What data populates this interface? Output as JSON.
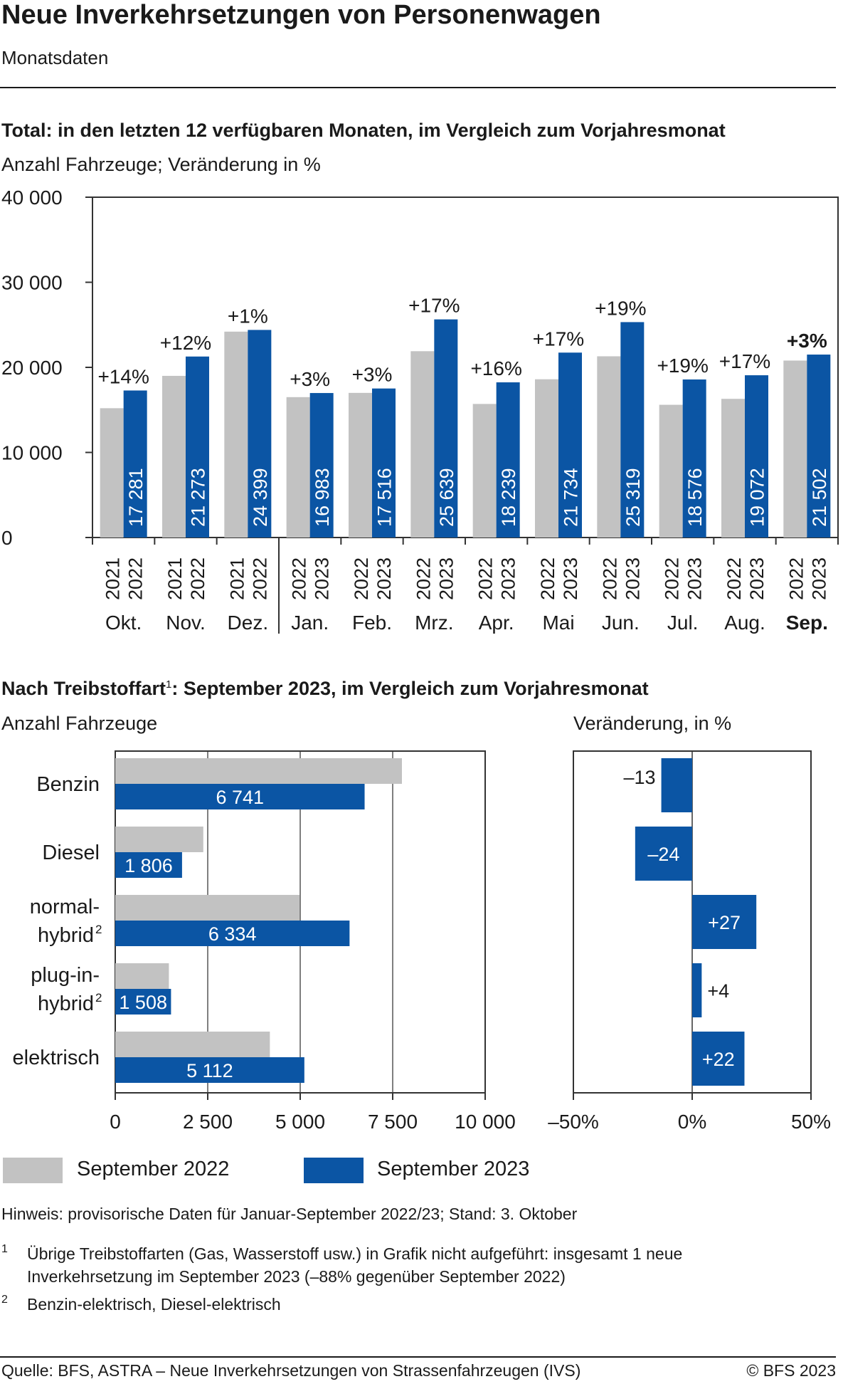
{
  "header": {
    "title": "Neue Inverkehrsetzungen von Personenwagen",
    "subtitle": "Monatsdaten"
  },
  "colors": {
    "prev_year": "#c2c2c2",
    "curr_year": "#0b55a4",
    "axis": "#333333",
    "text": "#1a1a1a"
  },
  "chart_data": [
    {
      "type": "bar",
      "title": "Total: in den letzten 12 verfügbaren Monaten, im Vergleich zum Vorjahresmonat",
      "subtitle": "Anzahl Fahrzeuge; Veränderung in %",
      "ylim": [
        0,
        40000
      ],
      "yticks": [
        0,
        10000,
        20000,
        30000,
        40000
      ],
      "ytick_labels": [
        "0",
        "10 000",
        "20 000",
        "30 000",
        "40 000"
      ],
      "grid": false,
      "categories": [
        "Okt.",
        "Nov.",
        "Dez.",
        "Jan.",
        "Feb.",
        "Mrz.",
        "Apr.",
        "Mai",
        "Jun.",
        "Jul.",
        "Aug.",
        "Sep."
      ],
      "highlight_category": "Sep.",
      "year_labels": [
        [
          "2021",
          "2022"
        ],
        [
          "2021",
          "2022"
        ],
        [
          "2021",
          "2022"
        ],
        [
          "2022",
          "2023"
        ],
        [
          "2022",
          "2023"
        ],
        [
          "2022",
          "2023"
        ],
        [
          "2022",
          "2023"
        ],
        [
          "2022",
          "2023"
        ],
        [
          "2022",
          "2023"
        ],
        [
          "2022",
          "2023"
        ],
        [
          "2022",
          "2023"
        ],
        [
          "2022",
          "2023"
        ]
      ],
      "series": [
        {
          "name": "Vorjahresmonat",
          "color": "#c2c2c2",
          "values": [
            15200,
            19000,
            24200,
            16500,
            17000,
            21900,
            15700,
            18600,
            21300,
            15600,
            16300,
            20800
          ]
        },
        {
          "name": "Monat",
          "color": "#0b55a4",
          "values": [
            17281,
            21273,
            24399,
            16983,
            17516,
            25639,
            18239,
            21734,
            25319,
            18576,
            19072,
            21502
          ],
          "value_labels": [
            "17 281",
            "21 273",
            "24 399",
            "16 983",
            "17 516",
            "25 639",
            "18 239",
            "21 734",
            "25 319",
            "18 576",
            "19 072",
            "21 502"
          ]
        }
      ],
      "change_labels": [
        "+14%",
        "+12%",
        "+1%",
        "+3%",
        "+3%",
        "+17%",
        "+16%",
        "+17%",
        "+19%",
        "+19%",
        "+17%",
        "+3%"
      ]
    },
    {
      "type": "bar",
      "orientation": "horizontal",
      "title": "Nach Treibstoffart",
      "title_sup": "1",
      "title_rest": ": September 2023, im Vergleich zum Vorjahresmonat",
      "subtitle": "Anzahl Fahrzeuge",
      "xlim": [
        0,
        10000
      ],
      "xticks": [
        0,
        2500,
        5000,
        7500,
        10000
      ],
      "xtick_labels": [
        "0",
        "2 500",
        "5 000",
        "7 500",
        "10 000"
      ],
      "categories": [
        "Benzin",
        "Diesel",
        "normal-hybrid",
        "plug-in-hybrid",
        "elektrisch"
      ],
      "category_lines": [
        [
          "Benzin"
        ],
        [
          "Diesel"
        ],
        [
          "normal-",
          "hybrid"
        ],
        [
          "plug-in-",
          "hybrid"
        ],
        [
          "elektrisch"
        ]
      ],
      "category_sup": [
        "",
        "",
        "2",
        "2",
        ""
      ],
      "series": [
        {
          "name": "September 2022",
          "color": "#c2c2c2",
          "values": [
            7750,
            2380,
            4980,
            1450,
            4180
          ]
        },
        {
          "name": "September 2023",
          "color": "#0b55a4",
          "values": [
            6741,
            1806,
            6334,
            1508,
            5112
          ],
          "value_labels": [
            "6 741",
            "1 806",
            "6 334",
            "1 508",
            "5 112"
          ]
        }
      ]
    },
    {
      "type": "bar",
      "orientation": "horizontal",
      "title": "Veränderung, in %",
      "xlim": [
        -50,
        50
      ],
      "xticks": [
        -50,
        0,
        50
      ],
      "xtick_labels": [
        "–50%",
        "0%",
        "50%"
      ],
      "categories": [
        "Benzin",
        "Diesel",
        "normal-hybrid",
        "plug-in-hybrid",
        "elektrisch"
      ],
      "values": [
        -13,
        -24,
        27,
        4,
        22
      ],
      "value_labels": [
        "–13",
        "–24",
        "+27",
        "+4",
        "+22"
      ]
    }
  ],
  "legend": {
    "items": [
      {
        "label": "September 2022",
        "color": "#c2c2c2"
      },
      {
        "label": "September 2023",
        "color": "#0b55a4"
      }
    ]
  },
  "notes": {
    "hint": "Hinweis: provisorische Daten für Januar-September 2022/23; Stand: 3. Oktober",
    "fn1_num": "1",
    "fn1_line1": "Übrige Treibstoffarten (Gas, Wasserstoff usw.) in Grafik nicht aufgeführt: insgesamt 1 neue",
    "fn1_line2": "Inverkehrsetzung im September 2023 (–88% gegenüber September 2022)",
    "fn2_num": "2",
    "fn2_text": "Benzin-elektrisch, Diesel-elektrisch"
  },
  "footer": {
    "source": "Quelle: BFS, ASTRA – Neue Inverkehrsetzungen von Strassenfahrzeugen (IVS)",
    "copyright": "© BFS 2023"
  }
}
